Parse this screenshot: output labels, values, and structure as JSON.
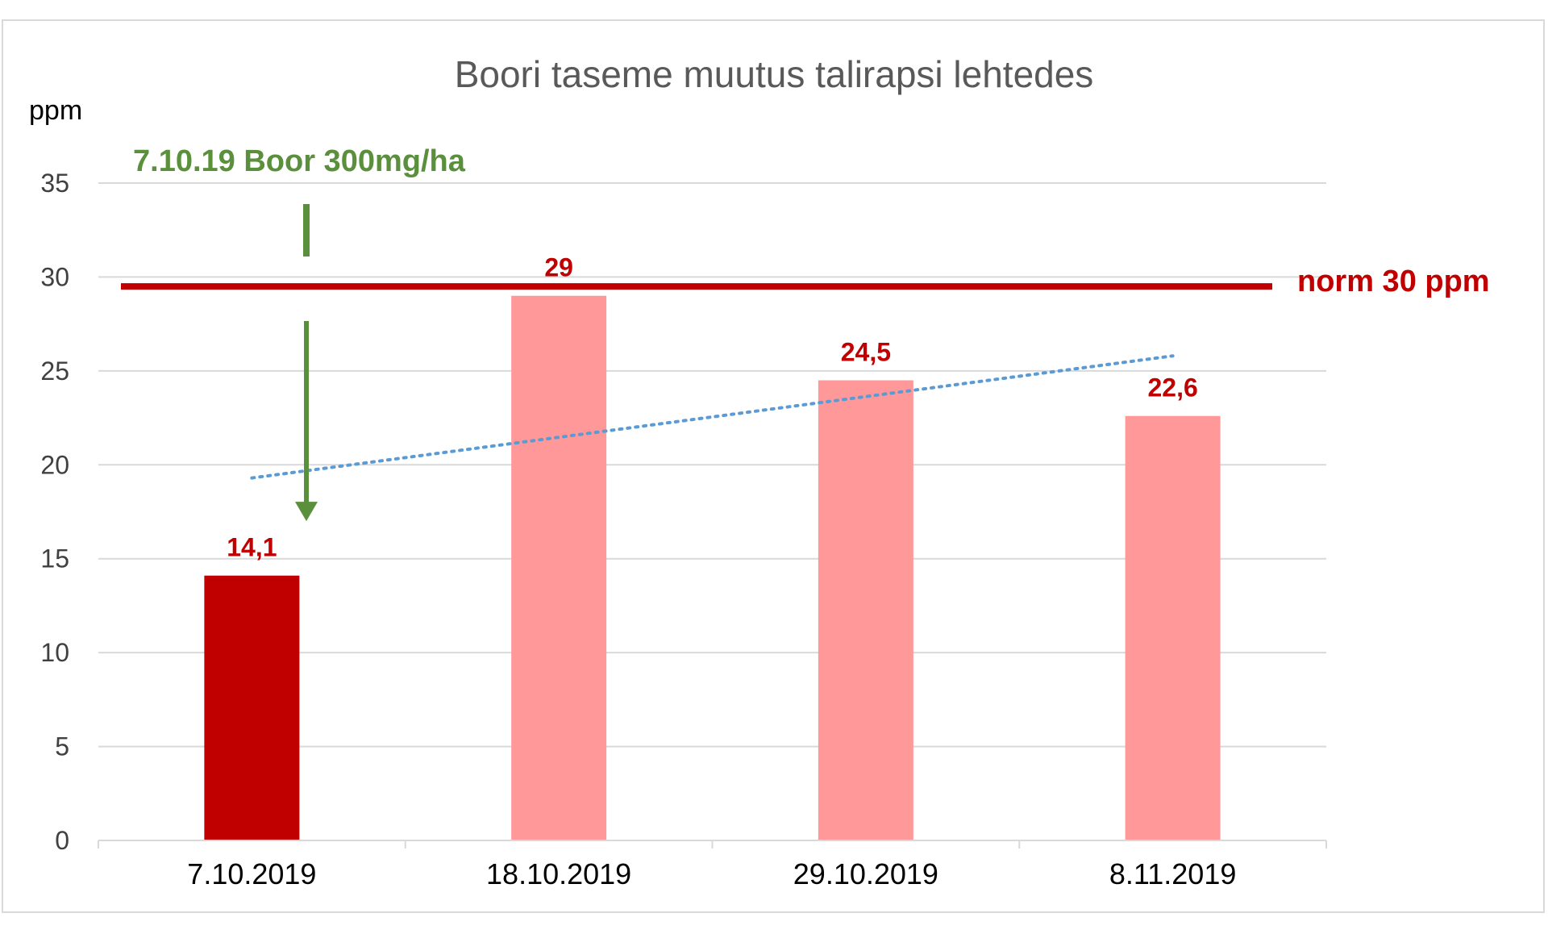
{
  "chart_data": {
    "type": "bar",
    "title": "Boori taseme muutus talirapsi lehtedes",
    "ylabel": "ppm",
    "xlabel": "",
    "categories": [
      "7.10.2019",
      "18.10.2019",
      "29.10.2019",
      "8.11.2019"
    ],
    "values": [
      14.1,
      29,
      24.5,
      22.6
    ],
    "data_labels": [
      "14,1",
      "29",
      "24,5",
      "22,6"
    ],
    "ylim": [
      0,
      35
    ],
    "yticks": [
      0,
      5,
      10,
      15,
      20,
      25,
      30,
      35
    ],
    "ytick_labels": [
      "0",
      "5",
      "10",
      "15",
      "20",
      "25",
      "30",
      "35"
    ],
    "grid": true,
    "legend": "none",
    "bar_colors": [
      "#c00000",
      "#ff9999",
      "#ff9999",
      "#ff9999"
    ],
    "reference_line": {
      "value": 29.5,
      "label": "norm 30 ppm",
      "color": "#c00000"
    },
    "trendline": {
      "type": "linear",
      "style": "dotted",
      "color": "#5b9bd5",
      "start": 19.3,
      "end": 25.8
    },
    "annotation": {
      "label": "7.10.19 Boor 300mg/ha",
      "color": "#5a8f3c",
      "points_to_category": "7.10.2019",
      "arrow_tip_value": 17
    }
  }
}
